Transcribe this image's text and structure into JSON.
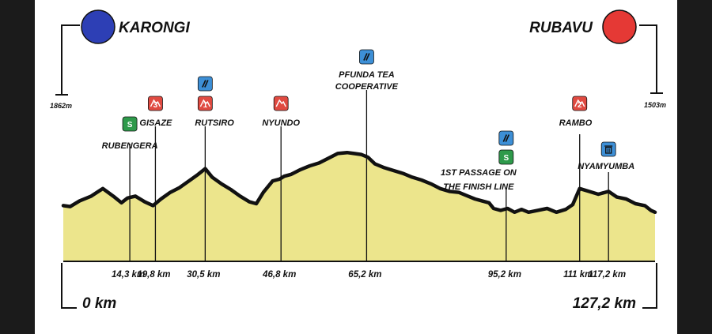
{
  "chart_data": {
    "type": "area",
    "title": "",
    "start": {
      "city": "KARONGI",
      "km_label": "0 km",
      "altitude_label": "1862m",
      "color": "#2d3fb5"
    },
    "finish": {
      "city": "RUBAVU",
      "km_label": "127,2 km",
      "altitude_label": "1503m",
      "color": "#e53935"
    },
    "fill_color": "#ece58c",
    "x_range": [
      0,
      127.2
    ],
    "profile": {
      "x": [
        0,
        1.5,
        3.5,
        6,
        8.5,
        11,
        12.5,
        13.8,
        15.5,
        17.5,
        19.3,
        21,
        23,
        25,
        27,
        29,
        30.5,
        32,
        34,
        36,
        38,
        40,
        41.5,
        43,
        45,
        46.5,
        47.5,
        49,
        51,
        53,
        55,
        57,
        59,
        61,
        62.5,
        64,
        65.5,
        67,
        69,
        71,
        73,
        75,
        77,
        79,
        81,
        83,
        85,
        87,
        88.5,
        90,
        91.5,
        92.5,
        94,
        95.5,
        97,
        98.5,
        100,
        102,
        104,
        106,
        108,
        109.5,
        111,
        113,
        115,
        117.2,
        119,
        121,
        123,
        125,
        126.3,
        127.2
      ],
      "y": [
        0.33,
        0.32,
        0.38,
        0.43,
        0.51,
        0.42,
        0.36,
        0.41,
        0.43,
        0.37,
        0.33,
        0.4,
        0.47,
        0.52,
        0.59,
        0.66,
        0.72,
        0.63,
        0.56,
        0.5,
        0.43,
        0.37,
        0.35,
        0.47,
        0.59,
        0.61,
        0.64,
        0.66,
        0.71,
        0.75,
        0.78,
        0.83,
        0.88,
        0.89,
        0.88,
        0.87,
        0.84,
        0.77,
        0.73,
        0.7,
        0.67,
        0.63,
        0.6,
        0.56,
        0.51,
        0.48,
        0.47,
        0.43,
        0.4,
        0.38,
        0.36,
        0.3,
        0.28,
        0.3,
        0.26,
        0.29,
        0.26,
        0.28,
        0.3,
        0.26,
        0.29,
        0.34,
        0.51,
        0.48,
        0.45,
        0.48,
        0.42,
        0.4,
        0.35,
        0.33,
        0.28,
        0.26
      ]
    },
    "waypoints": [
      {
        "km": 14.3,
        "km_label": "14,3 km",
        "name": "RUBENGERA",
        "badges": [
          {
            "icon": "sprint-icon",
            "text": "S",
            "color": "#2e9a4b"
          }
        ]
      },
      {
        "km": 19.8,
        "km_label": "19,8 km",
        "name": "GISAZE",
        "badges": [
          {
            "icon": "climb-icon",
            "text": "3",
            "color": "#e04a41"
          }
        ]
      },
      {
        "km": 30.5,
        "km_label": "30,5 km",
        "name": "RUTSIRO",
        "badges": [
          {
            "icon": "feed-zone-icon",
            "text": "",
            "color": "#3d8fd6"
          },
          {
            "icon": "climb-icon",
            "text": "1",
            "color": "#e04a41"
          }
        ]
      },
      {
        "km": 46.8,
        "km_label": "46,8 km",
        "name": "NYUNDO",
        "badges": [
          {
            "icon": "climb-icon",
            "text": "",
            "color": "#e04a41"
          }
        ]
      },
      {
        "km": 65.2,
        "km_label": "65,2 km",
        "name": [
          "PFUNDA TEA",
          "COOPERATIVE"
        ],
        "badges": [
          {
            "icon": "feed-zone-icon",
            "text": "",
            "color": "#3d8fd6"
          }
        ]
      },
      {
        "km": 95.2,
        "km_label": "95,2 km",
        "name": [
          "1ST PASSAGE ON",
          "THE FINISH LINE"
        ],
        "badges": [
          {
            "icon": "feed-zone-icon",
            "text": "",
            "color": "#3d8fd6"
          },
          {
            "icon": "sprint-icon",
            "text": "S",
            "color": "#2e9a4b"
          }
        ]
      },
      {
        "km": 111,
        "km_label": "111 km",
        "name": "RAMBO",
        "badges": [
          {
            "icon": "climb-icon",
            "text": "2",
            "color": "#e04a41"
          }
        ]
      },
      {
        "km": 117.2,
        "km_label": "117,2 km",
        "name": "NYAMYUMBA",
        "badges": [
          {
            "icon": "bin-icon",
            "text": "",
            "color": "#3d8fd6"
          }
        ]
      }
    ]
  }
}
